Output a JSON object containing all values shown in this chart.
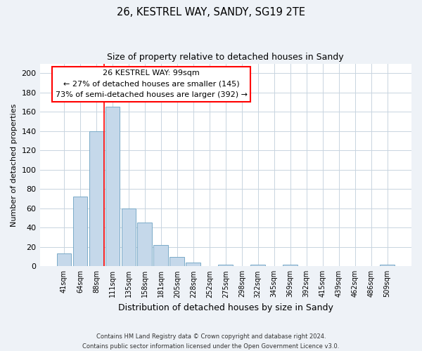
{
  "title": "26, KESTREL WAY, SANDY, SG19 2TE",
  "subtitle": "Size of property relative to detached houses in Sandy",
  "xlabel": "Distribution of detached houses by size in Sandy",
  "ylabel": "Number of detached properties",
  "bar_labels": [
    "41sqm",
    "64sqm",
    "88sqm",
    "111sqm",
    "135sqm",
    "158sqm",
    "181sqm",
    "205sqm",
    "228sqm",
    "252sqm",
    "275sqm",
    "298sqm",
    "322sqm",
    "345sqm",
    "369sqm",
    "392sqm",
    "415sqm",
    "439sqm",
    "462sqm",
    "486sqm",
    "509sqm"
  ],
  "bar_values": [
    13,
    72,
    140,
    165,
    60,
    45,
    22,
    10,
    4,
    0,
    2,
    0,
    2,
    0,
    2,
    0,
    0,
    0,
    0,
    0,
    2
  ],
  "bar_color": "#c5d8ea",
  "bar_edge_color": "#7aaac8",
  "vline_color": "red",
  "ylim": [
    0,
    210
  ],
  "yticks": [
    0,
    20,
    40,
    60,
    80,
    100,
    120,
    140,
    160,
    180,
    200
  ],
  "annotation_title": "26 KESTREL WAY: 99sqm",
  "annotation_line1": "← 27% of detached houses are smaller (145)",
  "annotation_line2": "73% of semi-detached houses are larger (392) →",
  "annotation_box_color": "white",
  "annotation_box_edge": "red",
  "footer_line1": "Contains HM Land Registry data © Crown copyright and database right 2024.",
  "footer_line2": "Contains public sector information licensed under the Open Government Licence v3.0.",
  "background_color": "#eef2f7",
  "plot_background_color": "white",
  "grid_color": "#c8d4e0"
}
